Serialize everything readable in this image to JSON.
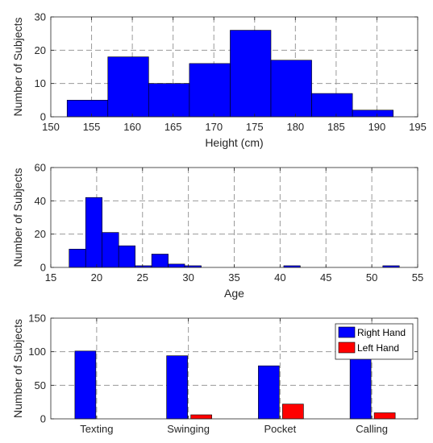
{
  "chart_data": [
    {
      "type": "histogram",
      "xlabel": "Height (cm)",
      "ylabel": "Number of Subjects",
      "xlim": [
        150,
        195
      ],
      "ylim": [
        0,
        30
      ],
      "xticks": [
        150,
        155,
        160,
        165,
        170,
        175,
        180,
        185,
        190,
        195
      ],
      "yticks": [
        0,
        10,
        20,
        30
      ],
      "grid": true,
      "bar_color": "#0000ff",
      "bins": [
        {
          "x0": 152,
          "x1": 157,
          "value": 5
        },
        {
          "x0": 157,
          "x1": 162,
          "value": 18
        },
        {
          "x0": 162,
          "x1": 167,
          "value": 10
        },
        {
          "x0": 167,
          "x1": 172,
          "value": 16
        },
        {
          "x0": 172,
          "x1": 177,
          "value": 26
        },
        {
          "x0": 177,
          "x1": 182,
          "value": 17
        },
        {
          "x0": 182,
          "x1": 187,
          "value": 7
        },
        {
          "x0": 187,
          "x1": 192,
          "value": 2
        }
      ]
    },
    {
      "type": "histogram",
      "xlabel": "Age",
      "ylabel": "Number of Subjects",
      "xlim": [
        15,
        55
      ],
      "ylim": [
        0,
        60
      ],
      "xticks": [
        15,
        20,
        25,
        30,
        35,
        40,
        45,
        50,
        55
      ],
      "yticks": [
        0,
        20,
        40,
        60
      ],
      "grid": true,
      "bar_color": "#0000ff",
      "bins": [
        {
          "x0": 17,
          "x1": 18.8,
          "value": 11
        },
        {
          "x0": 18.8,
          "x1": 20.6,
          "value": 42
        },
        {
          "x0": 20.6,
          "x1": 22.4,
          "value": 21
        },
        {
          "x0": 22.4,
          "x1": 24.2,
          "value": 13
        },
        {
          "x0": 24.2,
          "x1": 26,
          "value": 1
        },
        {
          "x0": 26,
          "x1": 27.8,
          "value": 8
        },
        {
          "x0": 27.8,
          "x1": 29.6,
          "value": 2
        },
        {
          "x0": 29.6,
          "x1": 31.4,
          "value": 1
        },
        {
          "x0": 40.4,
          "x1": 42.2,
          "value": 1
        },
        {
          "x0": 51.2,
          "x1": 53,
          "value": 1
        }
      ]
    },
    {
      "type": "bar",
      "ylabel": "Number of Subjects",
      "categories": [
        "Texting",
        "Swinging",
        "Pocket",
        "Calling"
      ],
      "ylim": [
        0,
        150
      ],
      "yticks": [
        0,
        50,
        100,
        150
      ],
      "grid": true,
      "legend_position": "top-right",
      "series": [
        {
          "name": "Right Hand",
          "color": "#0000ff",
          "values": [
            101,
            94,
            79,
            93
          ]
        },
        {
          "name": "Left Hand",
          "color": "#ff0000",
          "values": [
            0,
            6,
            22,
            9
          ]
        }
      ]
    }
  ]
}
